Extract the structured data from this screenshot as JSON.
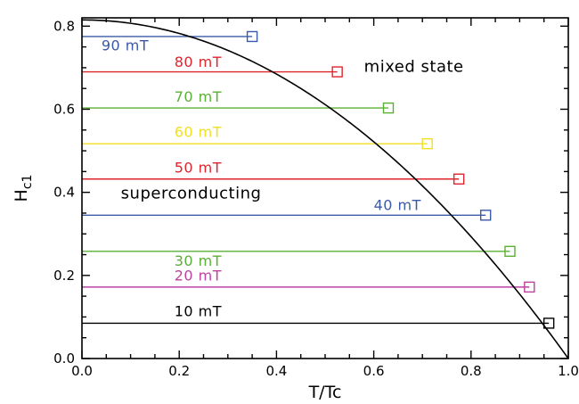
{
  "chart_data": {
    "type": "line",
    "xlabel": "T/Tc",
    "ylabel": "H",
    "ylabel_subscript": "c1",
    "xlim": [
      0.0,
      1.0
    ],
    "ylim": [
      0.0,
      0.82
    ],
    "x_ticks": [
      0.0,
      0.2,
      0.4,
      0.6,
      0.8,
      1.0
    ],
    "x_tick_labels": [
      "0.0",
      "0.2",
      "0.4",
      "0.6",
      "0.8",
      "1.0"
    ],
    "y_ticks": [
      0.0,
      0.2,
      0.4,
      0.6,
      0.8
    ],
    "y_tick_labels": [
      "0.0",
      "0.2",
      "0.4",
      "0.6",
      "0.8"
    ],
    "grid": false,
    "boundary": {
      "h0": 0.815,
      "form": "h0*(1-(T/Tc)^2)",
      "color": "#000000"
    },
    "annotations": [
      {
        "text": "mixed state",
        "x": 0.58,
        "y": 0.69,
        "color": "#000000"
      },
      {
        "text": "superconducting",
        "x": 0.08,
        "y": 0.385,
        "color": "#000000"
      }
    ],
    "series": [
      {
        "name": "90 mT",
        "h": 0.775,
        "t_end": 0.35,
        "color": "#3a5aa8",
        "label_x": 0.04,
        "label_y": 0.742
      },
      {
        "name": "80 mT",
        "h": 0.69,
        "t_end": 0.525,
        "color": "#e0242c",
        "label_x": 0.19,
        "label_y": 0.702
      },
      {
        "name": "70 mT",
        "h": 0.603,
        "t_end": 0.63,
        "color": "#5ab033",
        "label_x": 0.19,
        "label_y": 0.618
      },
      {
        "name": "60 mT",
        "h": 0.517,
        "t_end": 0.71,
        "color": "#f0e020",
        "label_x": 0.19,
        "label_y": 0.533
      },
      {
        "name": "50 mT",
        "h": 0.432,
        "t_end": 0.775,
        "color": "#e0242c",
        "label_x": 0.19,
        "label_y": 0.448
      },
      {
        "name": "40 mT",
        "h": 0.345,
        "t_end": 0.83,
        "color": "#3a5aa8",
        "label_x": 0.6,
        "label_y": 0.357
      },
      {
        "name": "30 mT",
        "h": 0.258,
        "t_end": 0.88,
        "color": "#5ab033",
        "label_x": 0.19,
        "label_y": 0.223
      },
      {
        "name": "20 mT",
        "h": 0.172,
        "t_end": 0.92,
        "color": "#c040a0",
        "label_x": 0.19,
        "label_y": 0.188
      },
      {
        "name": "10 mT",
        "h": 0.085,
        "t_end": 0.96,
        "color": "#000000",
        "label_x": 0.19,
        "label_y": 0.102
      }
    ]
  }
}
